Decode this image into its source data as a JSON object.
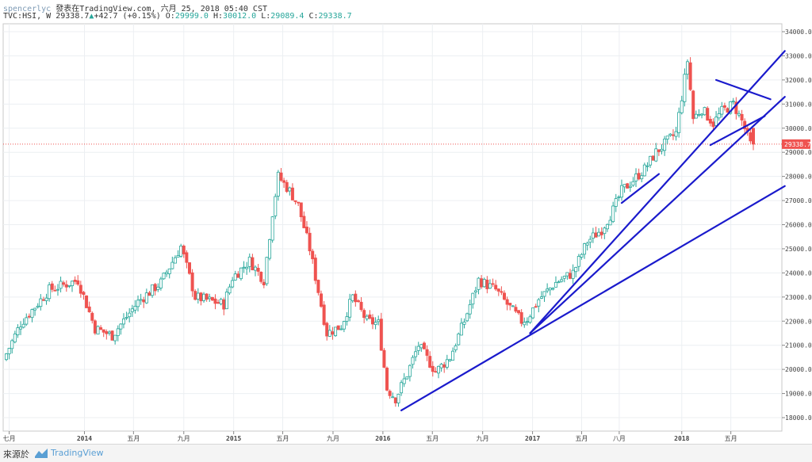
{
  "header": {
    "author": "spencerlyc",
    "published": "發表在TradingView.com, 六月 25, 2018 05:40 CST",
    "symbol": "TVC:HSI, W",
    "last": "29338.7",
    "change_arrow": "▲",
    "change": "+42.7 (+0.15%)",
    "open_label": "O:",
    "open": "29999.0",
    "high_label": "H:",
    "high": "30012.0",
    "low_label": "L:",
    "low": "29089.4",
    "close_label": "C:",
    "close": "29338.7"
  },
  "footer": {
    "source_label": "來源於",
    "brand": "TradingView"
  },
  "colors": {
    "up": "#26a69a",
    "down": "#ef5350",
    "trendline": "#1a1acc",
    "price_line": "#ef5350"
  },
  "chart_data": {
    "type": "candlestick",
    "interval": "weekly",
    "symbol": "TVC:HSI",
    "ylim": [
      17500,
      34300
    ],
    "y_ticks": [
      18000,
      19000,
      20000,
      21000,
      22000,
      23000,
      24000,
      25000,
      26000,
      27000,
      28000,
      29000,
      30000,
      31000,
      32000,
      33000,
      34000
    ],
    "y_tick_labels": [
      "18000.0",
      "19000.0",
      "20000.0",
      "21000.0",
      "22000.0",
      "23000.0",
      "24000.0",
      "25000.0",
      "26000.0",
      "27000.0",
      "28000.0",
      "29000.0",
      "30000.0",
      "31000.0",
      "32000.0",
      "33000.0",
      "34000.0"
    ],
    "x_ticks": [
      {
        "label": "七月",
        "date": "2013-07-01"
      },
      {
        "label": "2014",
        "date": "2014-01-01"
      },
      {
        "label": "五月",
        "date": "2014-05-01"
      },
      {
        "label": "九月",
        "date": "2014-09-01"
      },
      {
        "label": "2015",
        "date": "2015-01-01"
      },
      {
        "label": "五月",
        "date": "2015-05-01"
      },
      {
        "label": "九月",
        "date": "2015-09-01"
      },
      {
        "label": "2016",
        "date": "2016-01-01"
      },
      {
        "label": "五月",
        "date": "2016-05-01"
      },
      {
        "label": "九月",
        "date": "2016-09-01"
      },
      {
        "label": "2017",
        "date": "2017-01-01"
      },
      {
        "label": "五月",
        "date": "2017-05-01"
      },
      {
        "label": "八月",
        "date": "2017-08-01"
      },
      {
        "label": "2018",
        "date": "2018-01-01"
      },
      {
        "label": "五月",
        "date": "2018-05-01"
      }
    ],
    "last_price": 29338.7,
    "last_price_label": "29338.7",
    "anchors": [
      [
        "2013-06-24",
        20400
      ],
      [
        "2013-08-05",
        21900
      ],
      [
        "2013-10-14",
        23300
      ],
      [
        "2013-12-23",
        23700
      ],
      [
        "2014-02-03",
        21700
      ],
      [
        "2014-03-17",
        21400
      ],
      [
        "2014-05-19",
        22800
      ],
      [
        "2014-07-14",
        23600
      ],
      [
        "2014-09-01",
        25100
      ],
      [
        "2014-10-06",
        23000
      ],
      [
        "2014-12-15",
        22700
      ],
      [
        "2015-01-05",
        23800
      ],
      [
        "2015-02-16",
        24500
      ],
      [
        "2015-03-23",
        23700
      ],
      [
        "2015-04-13",
        26500
      ],
      [
        "2015-04-27",
        28000
      ],
      [
        "2015-05-25",
        27400
      ],
      [
        "2015-06-15",
        26800
      ],
      [
        "2015-07-13",
        25000
      ],
      [
        "2015-08-24",
        21500
      ],
      [
        "2015-09-28",
        21800
      ],
      [
        "2015-10-26",
        23000
      ],
      [
        "2015-11-30",
        22000
      ],
      [
        "2015-12-28",
        21900
      ],
      [
        "2016-01-18",
        19200
      ],
      [
        "2016-02-08",
        18800
      ],
      [
        "2016-03-07",
        19800
      ],
      [
        "2016-04-04",
        21000
      ],
      [
        "2016-05-16",
        19900
      ],
      [
        "2016-06-20",
        20500
      ],
      [
        "2016-07-25",
        22000
      ],
      [
        "2016-08-29",
        23700
      ],
      [
        "2016-10-10",
        23300
      ],
      [
        "2016-11-07",
        22700
      ],
      [
        "2016-12-12",
        22000
      ],
      [
        "2016-12-26",
        22100
      ],
      [
        "2017-01-23",
        22900
      ],
      [
        "2017-03-06",
        23600
      ],
      [
        "2017-04-17",
        24000
      ],
      [
        "2017-05-22",
        25300
      ],
      [
        "2017-06-26",
        25800
      ],
      [
        "2017-07-24",
        26600
      ],
      [
        "2017-08-14",
        27400
      ],
      [
        "2017-10-09",
        28300
      ],
      [
        "2017-11-06",
        29000
      ],
      [
        "2017-12-25",
        29800
      ],
      [
        "2018-01-22",
        32800
      ],
      [
        "2018-02-05",
        30400
      ],
      [
        "2018-02-26",
        30800
      ],
      [
        "2018-03-26",
        30200
      ],
      [
        "2018-04-16",
        30700
      ],
      [
        "2018-05-14",
        31000
      ],
      [
        "2018-06-04",
        30300
      ],
      [
        "2018-06-25",
        29339
      ]
    ],
    "trendlines": [
      {
        "from": [
          "2016-02-15",
          18300
        ],
        "to": [
          "2018-09-10",
          27600
        ]
      },
      {
        "from": [
          "2016-12-26",
          21500
        ],
        "to": [
          "2018-09-10",
          33200
        ]
      },
      {
        "from": [
          "2016-12-26",
          21500
        ],
        "to": [
          "2018-09-10",
          31300
        ]
      },
      {
        "from": [
          "2017-08-07",
          26900
        ],
        "to": [
          "2017-11-06",
          28100
        ]
      },
      {
        "from": [
          "2018-03-12",
          29300
        ],
        "to": [
          "2018-07-23",
          30500
        ]
      },
      {
        "from": [
          "2018-03-26",
          32000
        ],
        "to": [
          "2018-08-06",
          31200
        ]
      }
    ]
  }
}
